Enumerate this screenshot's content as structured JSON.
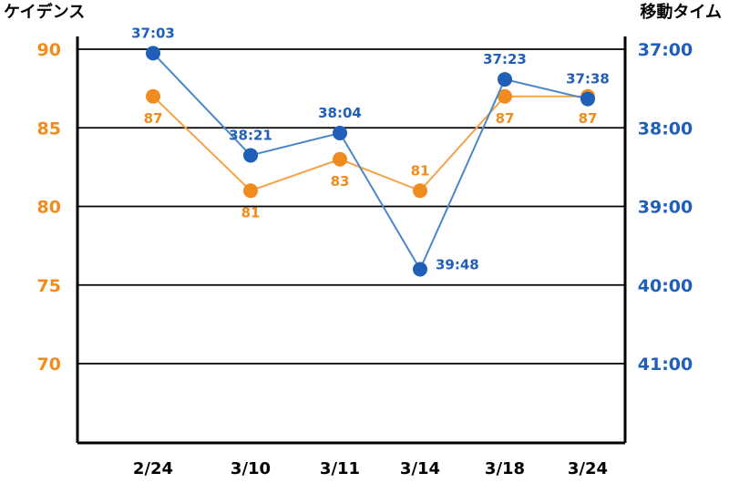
{
  "colors": {
    "cadence": "#f08c1e",
    "time": "#1f5fb8",
    "time_line": "#4a86c8",
    "cadence_line": "#f5a24a"
  },
  "chart_data": {
    "type": "line",
    "categories": [
      "2/24",
      "3/10",
      "3/11",
      "3/14",
      "3/18",
      "3/24"
    ],
    "y_left": {
      "label": "ケイデンス",
      "ticks": [
        "90",
        "85",
        "80",
        "75",
        "70"
      ],
      "range": [
        65,
        90
      ]
    },
    "y_right": {
      "label": "移動タイム",
      "ticks": [
        "37:00",
        "38:00",
        "39:00",
        "40:00",
        "41:00"
      ],
      "range_seconds": [
        2220,
        2520
      ],
      "inverted": true
    },
    "grid": true,
    "series": [
      {
        "name": "ケイデンス",
        "axis": "left",
        "values": [
          87,
          81,
          83,
          81,
          87,
          87
        ],
        "labels": [
          "87",
          "81",
          "83",
          "81",
          "87",
          "87"
        ],
        "label_pos": [
          "below",
          "below",
          "below",
          "above",
          "below",
          "below"
        ]
      },
      {
        "name": "移動タイム",
        "axis": "right",
        "values": [
          "37:03",
          "38:21",
          "38:04",
          "39:48",
          "37:23",
          "37:38"
        ],
        "seconds": [
          2223,
          2301,
          2284,
          2388,
          2243,
          2258
        ],
        "labels": [
          "37:03",
          "38:21",
          "38:04",
          "39:48",
          "37:23",
          "37:38"
        ],
        "label_pos": [
          "above",
          "above",
          "above",
          "right",
          "above",
          "above"
        ]
      }
    ]
  }
}
